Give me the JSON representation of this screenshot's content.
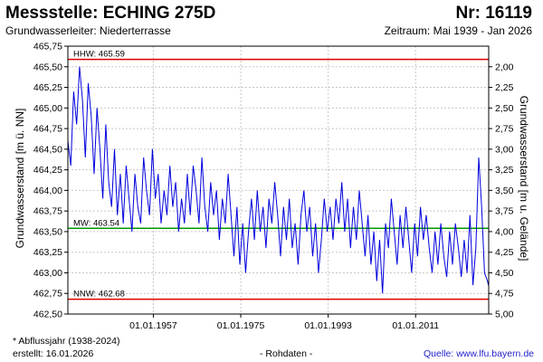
{
  "header": {
    "title": "Messstelle: ECHING 275D",
    "number": "Nr: 16119",
    "aquifer": "Grundwasserleiter:   Niederterrasse",
    "period": "Zeitraum: Mai 1939 - Jan 2026"
  },
  "footer": {
    "footnote": "* Abflussjahr (1938-2024)",
    "created": "erstellt:  16.01.2026",
    "rawdata": "- Rohdaten -",
    "source": "Quelle: www.lfu.bayern.de"
  },
  "chart_data": {
    "type": "line",
    "ylabel_left": "Grundwasserstand [m ü. NN]",
    "ylabel_right": "Grundwasserstand [m u. Gelände]",
    "ylim_left": [
      462.5,
      465.75
    ],
    "ylim_right": [
      5.0,
      1.75
    ],
    "left_ticks": [
      "465,75",
      "465,50",
      "465,25",
      "465,00",
      "464,75",
      "464,50",
      "464,25",
      "464,00",
      "463,75",
      "463,50",
      "463,25",
      "463,00",
      "462,75",
      "462,50"
    ],
    "right_ticks": [
      "2,00",
      "2,25",
      "2,50",
      "2,75",
      "3,00",
      "3,25",
      "3,50",
      "3,75",
      "4,00",
      "4,25",
      "4,50",
      "4,75",
      "5,00"
    ],
    "xlim": [
      1939.4,
      2026.05
    ],
    "x_ticks": [
      {
        "label": "01.01.1957",
        "year": 1957
      },
      {
        "label": "01.01.1975",
        "year": 1975
      },
      {
        "label": "01.01.1993",
        "year": 1993
      },
      {
        "label": "01.01.2011",
        "year": 2011
      }
    ],
    "grid": true,
    "reference_lines": [
      {
        "label": "HHW: 465.59",
        "value": 465.59,
        "color": "#e00000"
      },
      {
        "label": "MW: 463.54",
        "value": 463.54,
        "color": "#009900"
      },
      {
        "label": "NNW: 462.68",
        "value": 462.68,
        "color": "#e00000"
      }
    ],
    "series": [
      {
        "color": "#0000dd",
        "x": [
          1939.4,
          1940.0,
          1940.6,
          1941.2,
          1941.8,
          1942.4,
          1943.0,
          1943.6,
          1944.2,
          1944.8,
          1945.4,
          1946.0,
          1946.6,
          1947.2,
          1947.8,
          1948.4,
          1949.0,
          1949.6,
          1950.2,
          1950.8,
          1951.4,
          1952.0,
          1952.6,
          1953.2,
          1953.8,
          1954.4,
          1955.0,
          1955.6,
          1956.2,
          1956.8,
          1957.4,
          1958.0,
          1958.6,
          1959.2,
          1959.8,
          1960.4,
          1961.0,
          1961.6,
          1962.2,
          1962.8,
          1963.4,
          1964.0,
          1964.6,
          1965.2,
          1965.8,
          1966.4,
          1967.0,
          1967.6,
          1968.2,
          1968.8,
          1969.4,
          1970.0,
          1970.6,
          1971.2,
          1971.8,
          1972.4,
          1973.0,
          1973.6,
          1974.2,
          1974.8,
          1975.4,
          1976.0,
          1976.6,
          1977.2,
          1977.8,
          1978.4,
          1979.0,
          1979.6,
          1980.2,
          1980.8,
          1981.4,
          1982.0,
          1982.6,
          1983.2,
          1983.8,
          1984.4,
          1985.0,
          1985.6,
          1986.2,
          1986.8,
          1987.4,
          1988.0,
          1988.6,
          1989.2,
          1989.8,
          1990.4,
          1991.0,
          1991.6,
          1992.2,
          1992.8,
          1993.4,
          1994.0,
          1994.6,
          1995.2,
          1995.8,
          1996.4,
          1997.0,
          1997.6,
          1998.2,
          1998.8,
          1999.4,
          2000.0,
          2000.6,
          2001.2,
          2001.8,
          2002.4,
          2003.0,
          2003.6,
          2004.2,
          2004.8,
          2005.4,
          2006.0,
          2006.6,
          2007.2,
          2007.8,
          2008.4,
          2009.0,
          2009.6,
          2010.2,
          2010.8,
          2011.4,
          2012.0,
          2012.6,
          2013.2,
          2013.8,
          2014.4,
          2015.0,
          2015.6,
          2016.2,
          2016.8,
          2017.4,
          2018.0,
          2018.6,
          2019.2,
          2019.8,
          2020.4,
          2021.0,
          2021.6,
          2022.2,
          2022.8,
          2023.4,
          2024.0,
          2024.6,
          2025.2,
          2025.8,
          2026.0
        ],
        "y": [
          464.6,
          464.3,
          465.2,
          464.8,
          465.5,
          465.1,
          464.4,
          465.3,
          464.9,
          464.2,
          465.0,
          464.5,
          463.9,
          464.8,
          464.1,
          463.8,
          464.5,
          463.7,
          464.2,
          463.6,
          464.3,
          463.9,
          463.5,
          464.2,
          463.8,
          463.6,
          464.4,
          464.0,
          463.7,
          464.5,
          463.9,
          464.2,
          463.6,
          464.0,
          463.7,
          464.3,
          463.8,
          464.1,
          463.5,
          463.9,
          463.6,
          464.2,
          463.7,
          464.3,
          464.0,
          463.6,
          464.4,
          463.8,
          463.5,
          464.1,
          463.7,
          464.0,
          463.4,
          463.9,
          463.6,
          464.2,
          463.7,
          463.2,
          463.8,
          463.1,
          463.6,
          463.0,
          463.5,
          463.9,
          463.4,
          464.0,
          463.5,
          463.8,
          463.3,
          463.9,
          463.6,
          464.1,
          463.7,
          463.2,
          463.8,
          463.4,
          463.9,
          463.3,
          463.6,
          463.1,
          463.7,
          464.0,
          463.5,
          463.8,
          463.2,
          463.6,
          463.0,
          463.4,
          463.9,
          463.5,
          463.8,
          463.4,
          463.9,
          463.6,
          464.1,
          463.5,
          463.9,
          463.3,
          463.8,
          463.4,
          464.0,
          463.6,
          463.2,
          463.7,
          463.1,
          463.5,
          462.9,
          463.4,
          462.75,
          463.6,
          463.3,
          463.9,
          463.5,
          463.1,
          463.7,
          463.3,
          463.8,
          463.4,
          463.0,
          463.6,
          463.2,
          463.8,
          463.4,
          463.7,
          463.3,
          463.0,
          463.5,
          463.1,
          463.6,
          463.2,
          462.95,
          463.5,
          463.1,
          463.6,
          463.3,
          462.95,
          463.4,
          463.0,
          463.7,
          462.85,
          463.3,
          464.4,
          463.8,
          463.0,
          462.9,
          462.85
        ],
        "ref_style": "blue-line"
      }
    ]
  }
}
